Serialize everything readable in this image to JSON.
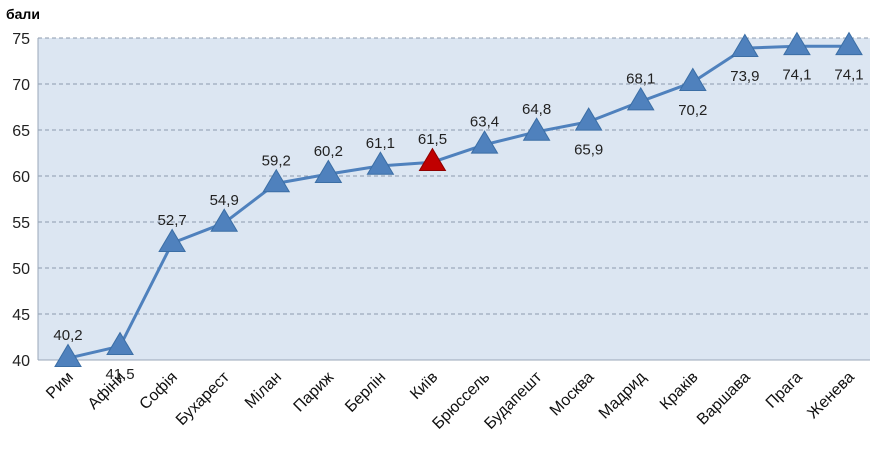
{
  "chart_data": {
    "type": "line",
    "unit_label": "бали",
    "categories": [
      "Рим",
      "Афіни",
      "Софія",
      "Бухарест",
      "Мілан",
      "Париж",
      "Берлін",
      "Київ",
      "Брюссель",
      "Будапешт",
      "Москва",
      "Мадрид",
      "Краків",
      "Варшава",
      "Прага",
      "Женева"
    ],
    "values": [
      40.2,
      41.5,
      52.7,
      54.9,
      59.2,
      60.2,
      61.1,
      61.5,
      63.4,
      64.8,
      65.9,
      68.1,
      70.2,
      73.9,
      74.1,
      74.1
    ],
    "value_labels": [
      "40,2",
      "41,5",
      "52,7",
      "54,9",
      "59,2",
      "60,2",
      "61,1",
      "61,5",
      "63,4",
      "64,8",
      "65,9",
      "68,1",
      "70,2",
      "73,9",
      "74,1",
      "74,1"
    ],
    "label_positions": [
      "above",
      "below",
      "above",
      "above",
      "above",
      "above",
      "above",
      "above",
      "above",
      "above",
      "below",
      "above",
      "below",
      "below",
      "below",
      "below"
    ],
    "highlight_index": 7,
    "yticks": [
      "40",
      "45",
      "50",
      "55",
      "60",
      "65",
      "70",
      "75"
    ],
    "ylim": [
      40,
      75
    ],
    "grid": true,
    "colors": {
      "line": "#4F81BD",
      "marker": "#4F81BD",
      "marker_highlight": "#C00000",
      "plot_background": "#DCE6F2",
      "grid": "#8C9BAE"
    }
  }
}
